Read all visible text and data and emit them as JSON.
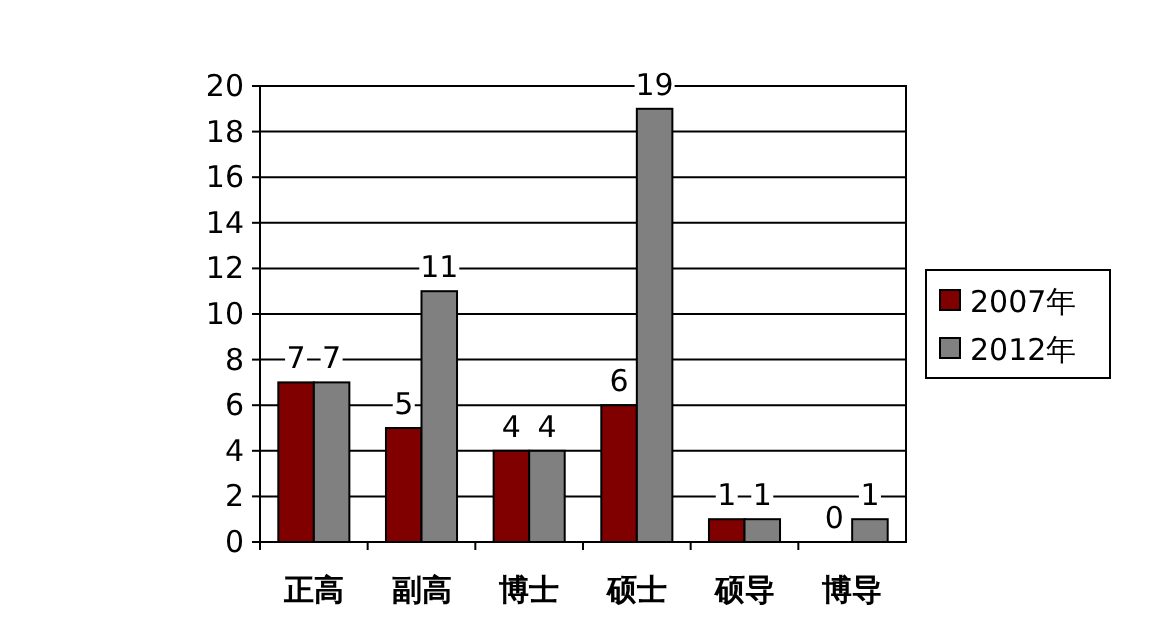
{
  "chart_data": {
    "type": "bar",
    "categories": [
      "正高",
      "副高",
      "博士",
      "硕士",
      "硕导",
      "博导"
    ],
    "series": [
      {
        "name": "2007年",
        "color": "#800000",
        "values": [
          7,
          5,
          4,
          6,
          1,
          0
        ]
      },
      {
        "name": "2012年",
        "color": "#808080",
        "values": [
          7,
          11,
          4,
          19,
          1,
          1
        ]
      }
    ],
    "ylim": [
      0,
      20
    ],
    "yticks": [
      0,
      2,
      4,
      6,
      8,
      10,
      12,
      14,
      16,
      18,
      20
    ],
    "grid": "y",
    "legend": "right",
    "data_labels": true
  }
}
